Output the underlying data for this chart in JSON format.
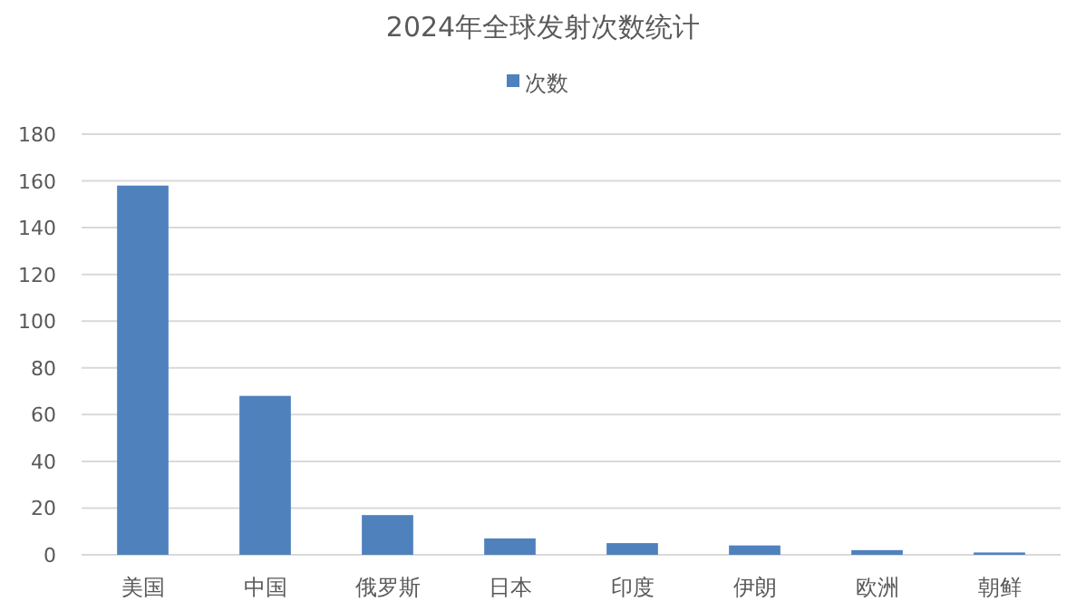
{
  "chart_data": {
    "type": "bar",
    "title": "2024年全球发射次数统计",
    "categories": [
      "美国",
      "中国",
      "俄罗斯",
      "日本",
      "印度",
      "伊朗",
      "欧洲",
      "朝鲜"
    ],
    "series": [
      {
        "name": "次数",
        "color": "#4f81bd",
        "values": [
          158,
          68,
          17,
          7,
          5,
          4,
          2,
          1
        ]
      }
    ],
    "ylim": [
      0,
      180
    ],
    "yticks": [
      0,
      20,
      40,
      60,
      80,
      100,
      120,
      140,
      160,
      180
    ],
    "grid": "y",
    "legend": "top"
  }
}
